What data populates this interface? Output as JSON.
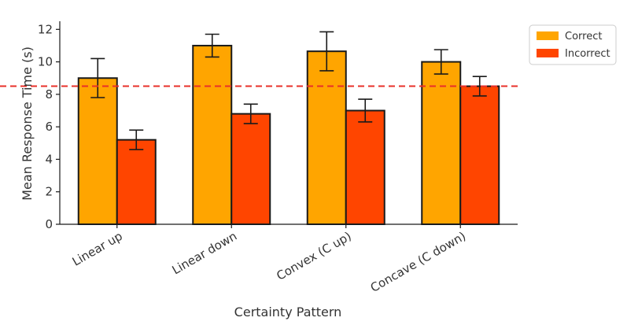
{
  "chart_data": {
    "type": "bar",
    "title": "",
    "xlabel": "Certainty Pattern",
    "ylabel": "Mean Response Time (s)",
    "ylim": [
      0,
      12.5
    ],
    "yticks": [
      0,
      2,
      4,
      6,
      8,
      10,
      12
    ],
    "categories": [
      "Linear up",
      "Linear down",
      "Convex (C up)",
      "Concave (C down)"
    ],
    "series": [
      {
        "name": "Correct",
        "color": "#FFA500",
        "values": [
          9.0,
          11.0,
          10.65,
          10.0
        ],
        "errors": [
          1.2,
          0.7,
          1.2,
          0.75
        ]
      },
      {
        "name": "Incorrect",
        "color": "#FF4500",
        "values": [
          5.2,
          6.8,
          7.0,
          8.5
        ],
        "errors": [
          0.6,
          0.6,
          0.7,
          0.6
        ]
      }
    ],
    "reference_line": {
      "y": 8.5,
      "color": "#E8302A",
      "style": "dashed"
    },
    "legend_position": "upper-right-outside",
    "grid": false,
    "xtick_rotation": -30
  }
}
